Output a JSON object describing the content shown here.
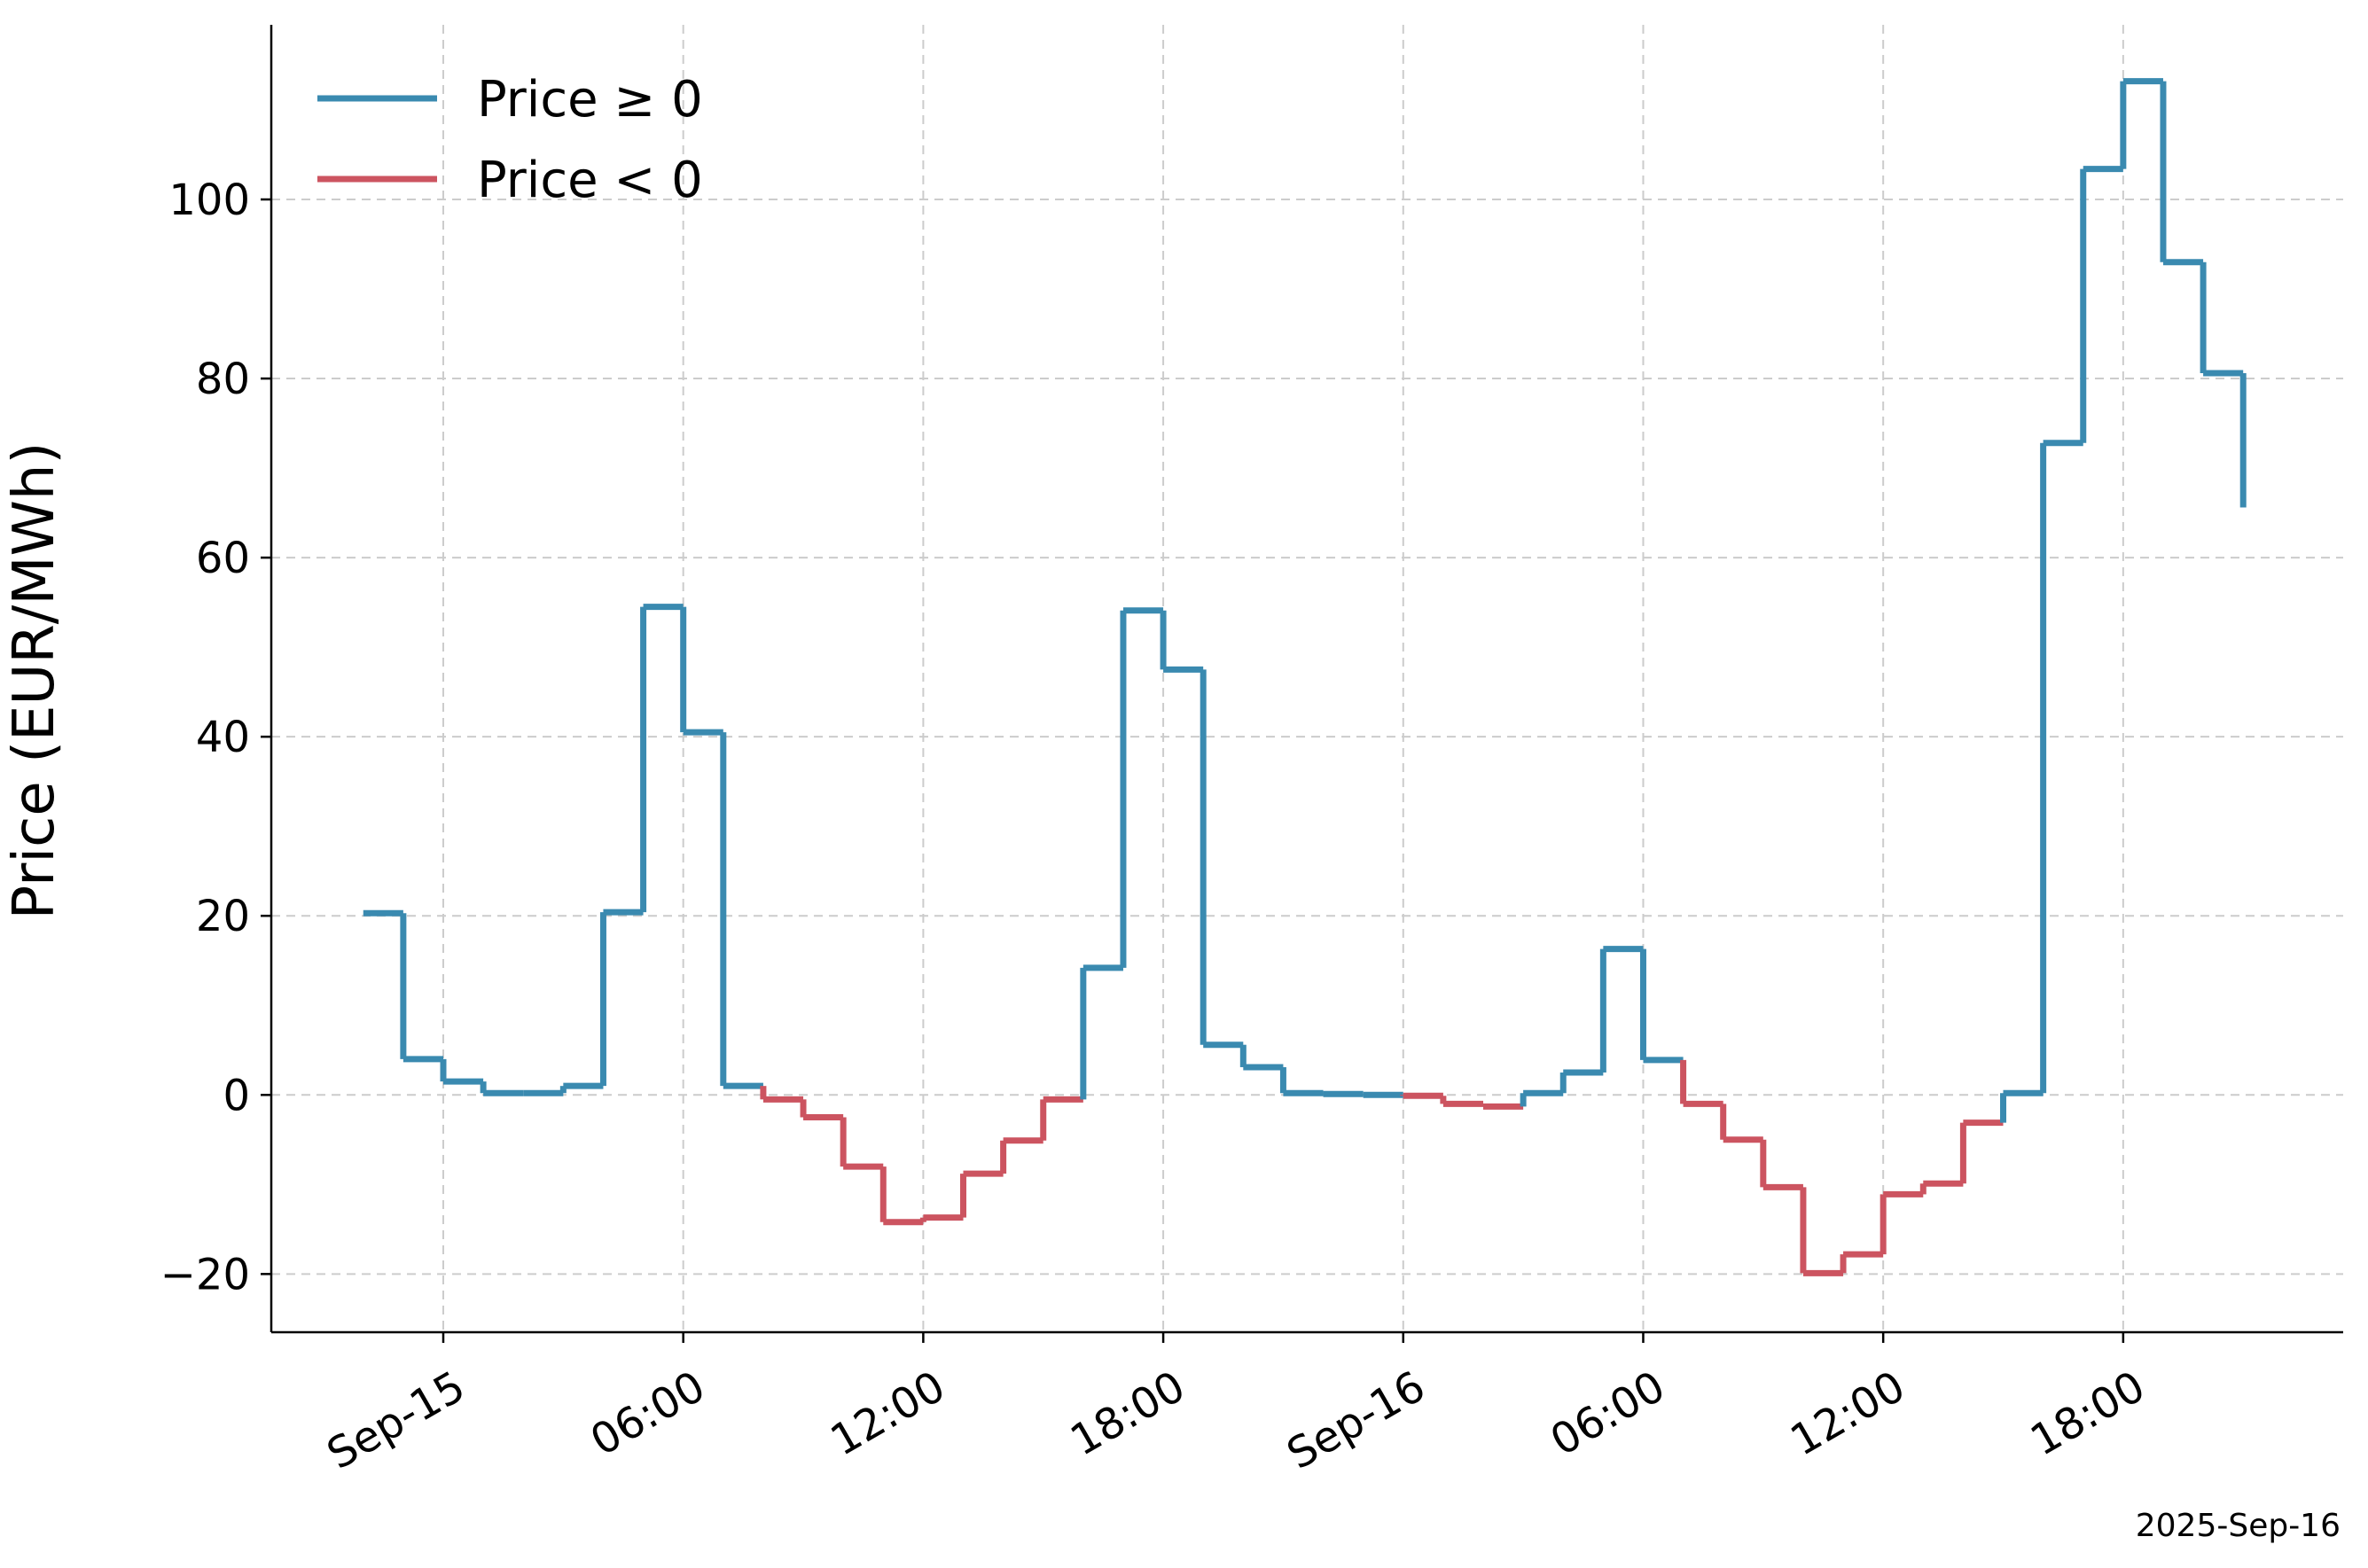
{
  "chart_data": {
    "type": "line",
    "step": "post",
    "title": "",
    "xlabel": "",
    "ylabel": "Price (EUR/MWh)",
    "footer": "2025-Sep-16",
    "x_unit": "hours since Sep-15 00:00",
    "xlim": [
      -4.3,
      47.5
    ],
    "ylim": [
      -26.5,
      119.5
    ],
    "x_ticks": [
      {
        "value": 0,
        "label": "Sep-15"
      },
      {
        "value": 6,
        "label": "06:00"
      },
      {
        "value": 12,
        "label": "12:00"
      },
      {
        "value": 18,
        "label": "18:00"
      },
      {
        "value": 24,
        "label": "Sep-16"
      },
      {
        "value": 30,
        "label": "06:00"
      },
      {
        "value": 36,
        "label": "12:00"
      },
      {
        "value": 42,
        "label": "18:00"
      }
    ],
    "y_ticks": [
      {
        "value": -20,
        "label": "−20"
      },
      {
        "value": 0,
        "label": "0"
      },
      {
        "value": 20,
        "label": "20"
      },
      {
        "value": 40,
        "label": "40"
      },
      {
        "value": 60,
        "label": "60"
      },
      {
        "value": 80,
        "label": "80"
      },
      {
        "value": 100,
        "label": "100"
      }
    ],
    "grid": true,
    "legend_position": "top-left",
    "series": [
      {
        "name": "Price ≥ 0",
        "color": "#3a8ab0",
        "condition": "nonnegative"
      },
      {
        "name": "Price < 0",
        "color": "#cc5460",
        "condition": "negative"
      }
    ],
    "x_start": -2,
    "interval_hours": 1,
    "final_x": 45,
    "values": [
      20.3,
      4.0,
      1.5,
      0.2,
      0.2,
      1.0,
      20.4,
      54.5,
      40.5,
      1.0,
      -0.5,
      -2.5,
      -8.0,
      -14.2,
      -13.7,
      -8.8,
      -5.1,
      -0.5,
      14.2,
      54.1,
      47.5,
      5.6,
      3.1,
      0.2,
      0.1,
      0.0,
      -0.1,
      -1.0,
      -1.3,
      0.2,
      2.5,
      16.3,
      3.9,
      -1.0,
      -5.0,
      -10.3,
      -19.9,
      -17.8,
      -11.1,
      -9.9,
      -3.1,
      0.2,
      72.8,
      103.4,
      113.2,
      93.0,
      80.6,
      65.6
    ]
  }
}
